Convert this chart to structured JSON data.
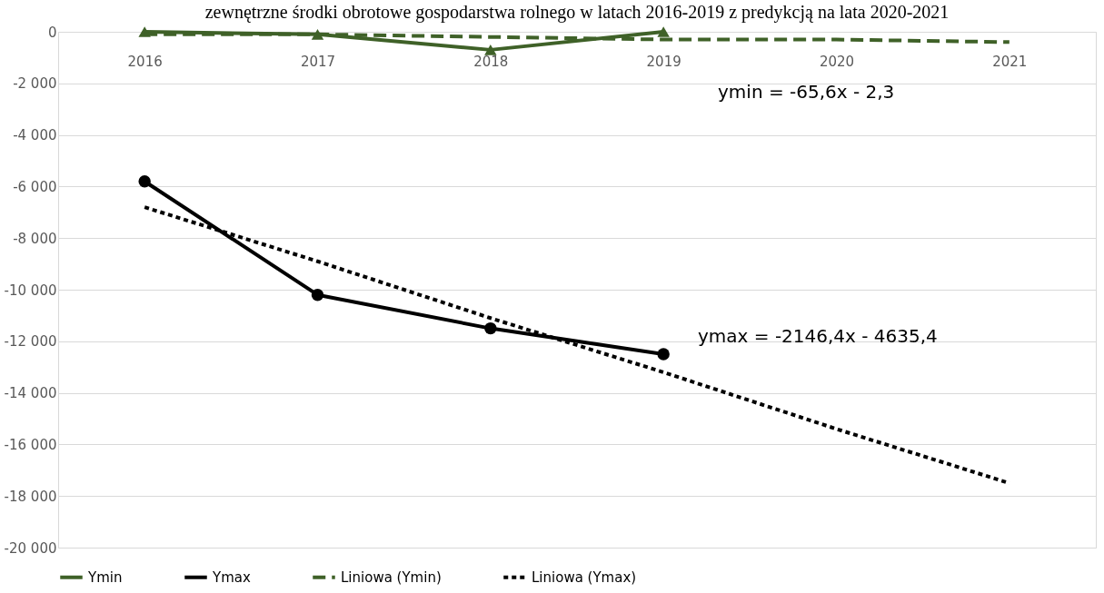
{
  "chart_data": {
    "type": "line",
    "title": "zewnętrzne środki obrotowe gospodarstwa rolnego w latach 2016-2019 z predykcją na lata 2020-2021",
    "categories": [
      "2016",
      "2017",
      "2018",
      "2019",
      "2020",
      "2021"
    ],
    "series": [
      {
        "name": "Ymin",
        "color": "#3f6128",
        "values": [
          0,
          -100,
          -700,
          0,
          null,
          null
        ],
        "marker": "triangle",
        "line_style": "solid"
      },
      {
        "name": "Ymax",
        "color": "#000000",
        "values": [
          -5800,
          -10200,
          -11500,
          -12500,
          null,
          null
        ],
        "marker": "circle",
        "line_style": "solid"
      },
      {
        "name": "Liniowa (Ymin)",
        "color": "#3f6128",
        "values": [
          -100,
          -100,
          -200,
          -300,
          -300,
          -400
        ],
        "marker": "none",
        "line_style": "dashed"
      },
      {
        "name": "Liniowa (Ymax)",
        "color": "#000000",
        "values": [
          -6800,
          -8900,
          -11100,
          -13200,
          -15400,
          -17500
        ],
        "marker": "none",
        "line_style": "dotted"
      }
    ],
    "ylim": [
      -20000,
      0
    ],
    "yticks": [
      {
        "value": 0,
        "label": "0"
      },
      {
        "value": -2000,
        "label": "-2 000"
      },
      {
        "value": -4000,
        "label": "-4 000"
      },
      {
        "value": -6000,
        "label": "-6 000"
      },
      {
        "value": -8000,
        "label": "-8 000"
      },
      {
        "value": -10000,
        "label": "-10 000"
      },
      {
        "value": -12000,
        "label": "-12 000"
      },
      {
        "value": -14000,
        "label": "-14 000"
      },
      {
        "value": -16000,
        "label": "-16 000"
      },
      {
        "value": -18000,
        "label": "-18 000"
      },
      {
        "value": -20000,
        "label": "-20 000"
      }
    ],
    "grid": "y",
    "legend": "bottom",
    "annotations": [
      "ymin = -65,6x - 2,3",
      "ymax = -2146,4x - 4635,4"
    ]
  }
}
